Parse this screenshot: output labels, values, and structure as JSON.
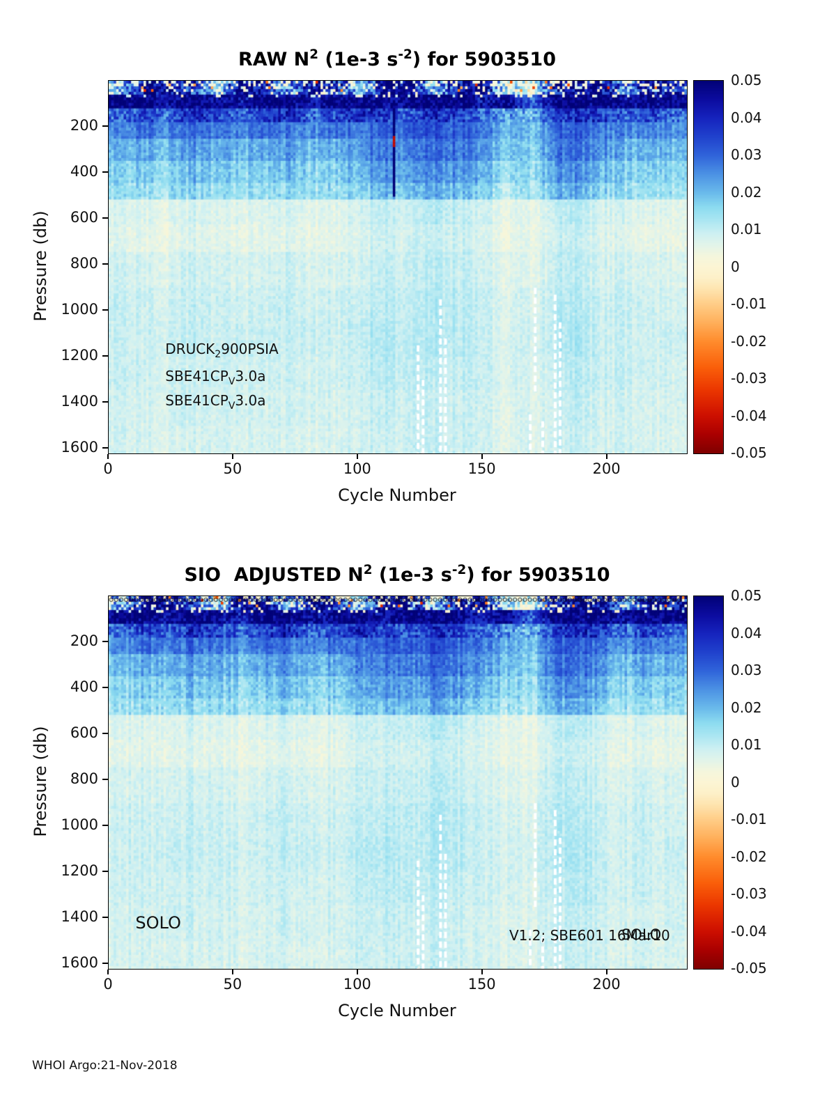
{
  "page": {
    "footer": "WHOI Argo:21-Nov-2018"
  },
  "colormap_stops": [
    [
      -0.05,
      128,
      0,
      0
    ],
    [
      -0.045,
      170,
      0,
      0
    ],
    [
      -0.04,
      205,
      15,
      0
    ],
    [
      -0.033,
      235,
      55,
      0
    ],
    [
      -0.027,
      250,
      95,
      10
    ],
    [
      -0.02,
      255,
      140,
      45
    ],
    [
      -0.015,
      255,
      175,
      90
    ],
    [
      -0.01,
      255,
      205,
      135
    ],
    [
      -0.006,
      254,
      228,
      175
    ],
    [
      -0.003,
      253,
      240,
      200
    ],
    [
      0.0,
      252,
      245,
      212
    ],
    [
      0.003,
      244,
      246,
      221
    ],
    [
      0.006,
      226,
      244,
      234
    ],
    [
      0.009,
      206,
      240,
      242
    ],
    [
      0.012,
      176,
      232,
      242
    ],
    [
      0.016,
      141,
      220,
      240
    ],
    [
      0.02,
      106,
      186,
      235
    ],
    [
      0.025,
      76,
      146,
      228
    ],
    [
      0.03,
      48,
      100,
      218
    ],
    [
      0.035,
      32,
      66,
      205
    ],
    [
      0.04,
      22,
      36,
      190
    ],
    [
      0.045,
      12,
      12,
      160
    ],
    [
      0.05,
      2,
      2,
      120
    ]
  ],
  "chart_data": [
    {
      "type": "heatmap",
      "title_parts": {
        "p1": "RAW N",
        "s1": "2",
        "p2": " (1e-3 s",
        "s2": "-2",
        "p3": ") for 5903510"
      },
      "xlabel": "Cycle Number",
      "ylabel": "Pressure (db)",
      "x_ticks": [
        0,
        50,
        100,
        150,
        200
      ],
      "y_ticks": [
        200,
        400,
        600,
        800,
        1000,
        1200,
        1400,
        1600
      ],
      "x_range": [
        0,
        232
      ],
      "y_range": [
        0,
        1620
      ],
      "colorbar_ticks": [
        0.05,
        0.04,
        0.03,
        0.02,
        0.01,
        0,
        -0.01,
        -0.02,
        -0.03,
        -0.04,
        -0.05
      ],
      "colorbar_range": [
        -0.05,
        0.05
      ],
      "annotations": [
        {
          "x_cycle": 23,
          "y_pressure": 1175,
          "size": 20,
          "parts": [
            [
              "t",
              "DRUCK"
            ],
            [
              "sub",
              "2"
            ],
            [
              "t",
              "900PSIA"
            ]
          ]
        },
        {
          "x_cycle": 23,
          "y_pressure": 1292,
          "size": 20,
          "parts": [
            [
              "t",
              "SBE41CP"
            ],
            [
              "sub",
              "V"
            ],
            [
              "t",
              "3.0a"
            ]
          ]
        },
        {
          "x_cycle": 23,
          "y_pressure": 1398,
          "size": 20,
          "parts": [
            [
              "t",
              "SBE41CP"
            ],
            [
              "sub",
              "V"
            ],
            [
              "t",
              "3.0a"
            ]
          ]
        }
      ],
      "features": {
        "top_markers": false,
        "dark_column": {
          "cycle": 114,
          "from": 125,
          "to": 500,
          "value": 0.05
        },
        "red_spot": {
          "cycle": 114,
          "from": 240,
          "to": 284,
          "value": -0.042
        }
      },
      "gaps": [
        {
          "cycle": 124,
          "from": 1150,
          "to": 1620
        },
        {
          "cycle": 126,
          "from": 1300,
          "to": 1620
        },
        {
          "cycle": 133,
          "from": 950,
          "to": 1620
        },
        {
          "cycle": 135,
          "from": 1120,
          "to": 1620
        },
        {
          "cycle": 169,
          "from": 1450,
          "to": 1620
        },
        {
          "cycle": 171,
          "from": 900,
          "to": 1350
        },
        {
          "cycle": 174,
          "from": 1480,
          "to": 1620
        },
        {
          "cycle": 179,
          "from": 930,
          "to": 1620
        },
        {
          "cycle": 181,
          "from": 1050,
          "to": 1620
        }
      ],
      "pressure_bands": [
        0,
        60,
        120,
        180,
        250,
        350,
        450,
        520,
        620,
        750,
        900,
        1050,
        1200,
        1350,
        1500,
        1620
      ],
      "grid": [
        [
          0.02,
          0.05,
          0.048,
          0.035,
          0.012,
          0.05,
          0.045,
          0.022,
          0.05,
          0.04,
          0.016,
          0.05,
          0.05,
          0.02,
          0.045,
          0.05,
          0.012,
          0.006,
          0.04,
          0.05,
          0.045,
          0.022,
          0.05,
          0.04
        ],
        [
          0.05,
          0.05,
          0.045,
          0.05,
          0.048,
          0.042,
          0.05,
          0.05,
          0.045,
          0.05,
          0.05,
          0.046,
          0.05,
          0.05,
          0.05,
          0.042,
          0.05,
          0.03,
          0.05,
          0.05,
          0.05,
          0.046,
          0.05,
          0.05
        ],
        [
          0.03,
          0.036,
          0.03,
          0.04,
          0.035,
          0.03,
          0.036,
          0.04,
          0.03,
          0.036,
          0.04,
          0.036,
          0.032,
          0.04,
          0.036,
          0.03,
          0.026,
          0.02,
          0.036,
          0.04,
          0.036,
          0.03,
          0.036,
          0.03
        ],
        [
          0.025,
          0.03,
          0.026,
          0.03,
          0.028,
          0.025,
          0.03,
          0.028,
          0.025,
          0.03,
          0.028,
          0.032,
          0.03,
          0.034,
          0.03,
          0.028,
          0.022,
          0.018,
          0.03,
          0.032,
          0.028,
          0.025,
          0.028,
          0.025
        ],
        [
          0.02,
          0.022,
          0.02,
          0.024,
          0.022,
          0.02,
          0.022,
          0.024,
          0.02,
          0.022,
          0.026,
          0.028,
          0.026,
          0.03,
          0.028,
          0.024,
          0.02,
          0.016,
          0.028,
          0.03,
          0.024,
          0.02,
          0.022,
          0.02
        ],
        [
          0.016,
          0.018,
          0.016,
          0.02,
          0.018,
          0.016,
          0.018,
          0.02,
          0.016,
          0.018,
          0.022,
          0.024,
          0.022,
          0.026,
          0.024,
          0.02,
          0.016,
          0.014,
          0.024,
          0.026,
          0.02,
          0.016,
          0.018,
          0.016
        ],
        [
          0.014,
          0.015,
          0.014,
          0.016,
          0.015,
          0.014,
          0.015,
          0.016,
          0.014,
          0.015,
          0.018,
          0.02,
          0.018,
          0.022,
          0.02,
          0.016,
          0.013,
          0.012,
          0.02,
          0.022,
          0.016,
          0.014,
          0.015,
          0.014
        ],
        [
          0.007,
          0.007,
          0.006,
          0.008,
          0.007,
          0.006,
          0.007,
          0.008,
          0.006,
          0.007,
          0.009,
          0.01,
          0.009,
          0.012,
          0.01,
          0.008,
          0.006,
          0.005,
          0.01,
          0.012,
          0.008,
          0.007,
          0.007,
          0.006
        ],
        [
          0.006,
          0.006,
          0.005,
          0.007,
          0.006,
          0.005,
          0.006,
          0.007,
          0.005,
          0.006,
          0.008,
          0.009,
          0.008,
          0.01,
          0.009,
          0.007,
          0.005,
          0.005,
          0.009,
          0.01,
          0.007,
          0.006,
          0.006,
          0.005
        ],
        [
          0.008,
          0.008,
          0.007,
          0.009,
          0.008,
          0.007,
          0.008,
          0.009,
          0.007,
          0.008,
          0.009,
          0.01,
          0.009,
          0.011,
          0.01,
          0.008,
          0.007,
          0.006,
          0.01,
          0.011,
          0.008,
          0.008,
          0.008,
          0.007
        ],
        [
          0.009,
          0.009,
          0.008,
          0.01,
          0.009,
          0.008,
          0.009,
          0.01,
          0.008,
          0.009,
          0.01,
          0.011,
          0.01,
          0.012,
          0.011,
          0.009,
          0.008,
          0.007,
          0.011,
          0.012,
          0.009,
          0.009,
          0.009,
          0.008
        ],
        [
          0.009,
          0.009,
          0.009,
          0.01,
          0.009,
          0.009,
          0.009,
          0.01,
          0.009,
          0.009,
          0.011,
          0.012,
          0.01,
          0.012,
          0.011,
          0.009,
          0.008,
          0.008,
          0.011,
          0.013,
          0.009,
          0.009,
          0.009,
          0.009
        ],
        [
          0.009,
          0.009,
          0.008,
          0.009,
          0.009,
          0.008,
          0.009,
          0.009,
          0.008,
          0.009,
          0.01,
          0.011,
          0.01,
          0.011,
          0.01,
          0.009,
          0.008,
          0.007,
          0.01,
          0.012,
          0.009,
          0.009,
          0.009,
          0.008
        ],
        [
          0.008,
          0.008,
          0.008,
          0.009,
          0.008,
          0.008,
          0.008,
          0.009,
          0.008,
          0.008,
          0.009,
          0.01,
          0.009,
          0.01,
          0.009,
          0.008,
          0.007,
          0.007,
          0.009,
          0.011,
          0.008,
          0.008,
          0.008,
          0.008
        ],
        [
          0.008,
          0.008,
          0.007,
          0.008,
          0.008,
          0.007,
          0.008,
          0.008,
          0.007,
          0.008,
          0.009,
          0.009,
          0.009,
          0.01,
          0.009,
          0.008,
          0.007,
          0.007,
          0.009,
          0.01,
          0.008,
          0.008,
          0.008,
          0.007
        ]
      ]
    },
    {
      "type": "heatmap",
      "title_parts": {
        "p1": "SIO  ADJUSTED N",
        "s1": "2",
        "p2": " (1e-3 s",
        "s2": "-2",
        "p3": ") for 5903510"
      },
      "xlabel": "Cycle Number",
      "ylabel": "Pressure (db)",
      "x_ticks": [
        0,
        50,
        100,
        150,
        200
      ],
      "y_ticks": [
        200,
        400,
        600,
        800,
        1000,
        1200,
        1400,
        1600
      ],
      "x_range": [
        0,
        232
      ],
      "y_range": [
        0,
        1620
      ],
      "colorbar_ticks": [
        0.05,
        0.04,
        0.03,
        0.02,
        0.01,
        0,
        -0.01,
        -0.02,
        -0.03,
        -0.04,
        -0.05
      ],
      "colorbar_range": [
        -0.05,
        0.05
      ],
      "annotations": [
        {
          "x_cycle": 11,
          "y_pressure": 1432,
          "size": 24,
          "parts": [
            [
              "t",
              "SOLO"
            ]
          ]
        },
        {
          "x_cycle": 161,
          "y_pressure": 1484,
          "size": 20,
          "parts": [
            [
              "t",
              "V1.2; SBE601 16Mar10"
            ]
          ]
        },
        {
          "x_cycle": 206,
          "y_pressure": 1484,
          "size": 21,
          "parts": [
            [
              "t",
              "SOLO"
            ]
          ]
        }
      ],
      "features": {
        "top_markers": true
      },
      "grid_same_as": 0,
      "gaps_same_as": 0
    }
  ]
}
